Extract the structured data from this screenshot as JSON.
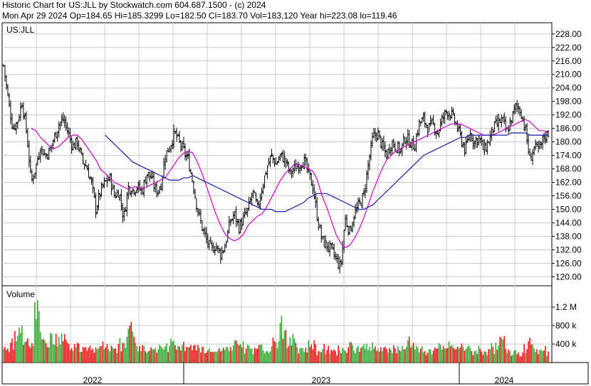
{
  "header": {
    "line1": "Historic Chart for US:JLL by Stockwatch.com 604.687.1500 - (c) 2024",
    "line2": "Mon Apr 29 2024   Op=184.65   Hi=185.3299   Lo=182.50   Cl=183.70   Vol=183,120   Year hi=223.08   lo=119.46"
  },
  "colors": {
    "up_volume": "#33aa33",
    "down_volume": "#ee1111",
    "ma_short": "#cc00cc",
    "ma_long": "#1a1aaa",
    "grid": "#c8c8c8"
  },
  "chart_data": [
    {
      "type": "line",
      "symbol_label": "US:JLL",
      "y_ticks": [
        "228.00",
        "222.00",
        "216.00",
        "210.00",
        "204.00",
        "198.00",
        "192.00",
        "186.00",
        "180.00",
        "174.00",
        "168.00",
        "162.00",
        "156.00",
        "150.00",
        "144.00",
        "138.00",
        "132.00",
        "126.00",
        "120.00"
      ],
      "x_ticks": [
        "2022",
        "2023",
        "2024"
      ],
      "ylim": [
        116,
        233
      ],
      "series": [
        {
          "values": [
            214,
            199,
            186,
            189,
            198,
            184,
            162,
            169,
            178,
            174,
            176,
            182,
            188,
            190,
            184,
            178,
            180,
            172,
            169,
            162,
            150,
            158,
            162,
            164,
            156,
            158,
            146,
            160,
            159,
            160,
            158,
            166,
            164,
            158,
            160,
            174,
            178,
            184,
            180,
            176,
            172,
            162,
            150,
            142,
            136,
            132,
            134,
            130,
            134,
            144,
            148,
            142,
            146,
            150,
            158,
            150,
            160,
            168,
            174,
            170,
            174,
            172,
            166,
            168,
            170,
            172,
            166,
            160,
            146,
            136,
            134,
            132,
            128,
            124,
            146,
            140,
            148,
            152,
            156,
            170,
            182,
            184,
            178,
            174,
            180,
            178,
            176,
            182,
            180,
            178,
            188,
            190,
            186,
            188,
            184,
            190,
            194,
            192,
            188,
            182,
            176,
            184,
            180,
            182,
            176,
            180,
            186,
            188,
            190,
            184,
            190,
            196,
            194,
            186,
            172,
            178,
            176,
            182,
            184
          ]
        },
        {
          "values": [
            null,
            null,
            null,
            null,
            null,
            null,
            186,
            185,
            182,
            180,
            178,
            177,
            178,
            180,
            182,
            183,
            183,
            181,
            178,
            175,
            172,
            168,
            166,
            164,
            162,
            161,
            160,
            159,
            160,
            160,
            159,
            160,
            161,
            162,
            163,
            164,
            167,
            170,
            173,
            175,
            176,
            175,
            171,
            166,
            160,
            154,
            148,
            143,
            139,
            137,
            136,
            137,
            139,
            143,
            145,
            147,
            148,
            151,
            155,
            159,
            163,
            166,
            168,
            170,
            170,
            169,
            168,
            167,
            163,
            156,
            151,
            145,
            139,
            135,
            133,
            134,
            137,
            141,
            146,
            152,
            158,
            163,
            168,
            172,
            174,
            176,
            177,
            178,
            179,
            180,
            181,
            182,
            183,
            184,
            185,
            186,
            187,
            188,
            188,
            188,
            187,
            186,
            185,
            184,
            183,
            183,
            183,
            184,
            185,
            186,
            187,
            188,
            189,
            190,
            189,
            187,
            185,
            185,
            184
          ]
        },
        {
          "values": [
            null,
            null,
            null,
            null,
            null,
            null,
            null,
            null,
            null,
            null,
            null,
            null,
            null,
            null,
            null,
            null,
            null,
            null,
            null,
            null,
            null,
            null,
            183,
            181,
            179,
            177,
            175,
            173,
            171,
            170,
            169,
            168,
            167,
            166,
            165,
            164,
            163,
            163,
            163,
            164,
            164,
            165,
            164,
            163,
            162,
            161,
            160,
            159,
            158,
            157,
            156,
            155,
            154,
            153,
            152,
            151,
            150,
            150,
            150,
            149,
            149,
            149,
            150,
            151,
            152,
            153,
            155,
            156,
            157,
            157,
            157,
            156,
            155,
            154,
            153,
            152,
            151,
            150,
            150,
            151,
            152,
            154,
            156,
            158,
            160,
            162,
            164,
            166,
            168,
            170,
            172,
            174,
            175,
            176,
            177,
            178,
            179,
            180,
            181,
            182,
            182,
            183,
            183,
            183,
            183,
            183,
            183,
            183,
            183,
            183,
            184,
            184,
            184,
            184,
            183,
            183,
            183,
            183,
            183
          ]
        }
      ]
    },
    {
      "type": "bar",
      "label": "Volume",
      "y_ticks": [
        "1.2 M",
        "800 k",
        "400 k"
      ],
      "values": [
        300,
        300,
        520,
        460,
        640,
        440,
        360,
        1350,
        500,
        420,
        640,
        380,
        560,
        460,
        430,
        310,
        330,
        230,
        320,
        300,
        290,
        360,
        330,
        240,
        290,
        400,
        420,
        560,
        880,
        430,
        360,
        240,
        290,
        210,
        350,
        350,
        360,
        470,
        360,
        380,
        340,
        380,
        320,
        340,
        260,
        230,
        230,
        240,
        270,
        250,
        370,
        410,
        330,
        300,
        320,
        380,
        270,
        250,
        350,
        440,
        860,
        690,
        360,
        620,
        330,
        320,
        340,
        480,
        250,
        290,
        270,
        280,
        250,
        260,
        280,
        330,
        380,
        320,
        300,
        340,
        300,
        290,
        250,
        300,
        280,
        310,
        270,
        290,
        480,
        360,
        300,
        250,
        290,
        260,
        300,
        280,
        300,
        350,
        290,
        310,
        340,
        250,
        260,
        300,
        250,
        290,
        340,
        280,
        540,
        300,
        250,
        260,
        220,
        290,
        390,
        230,
        270,
        260,
        240
      ]
    }
  ]
}
